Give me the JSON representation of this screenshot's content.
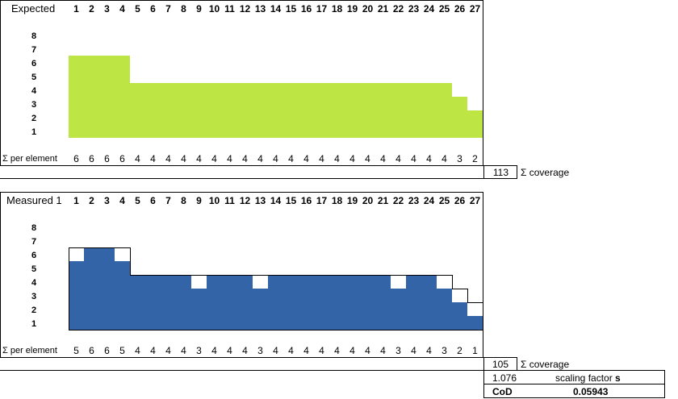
{
  "columns": [
    "1",
    "2",
    "3",
    "4",
    "5",
    "6",
    "7",
    "8",
    "9",
    "10",
    "11",
    "12",
    "13",
    "14",
    "15",
    "16",
    "17",
    "18",
    "19",
    "20",
    "21",
    "22",
    "23",
    "24",
    "25",
    "26",
    "27"
  ],
  "row_labels": [
    "8",
    "7",
    "6",
    "5",
    "4",
    "3",
    "2",
    "1"
  ],
  "sum_label": "Σ per element",
  "colors": {
    "expected_fill": "#bde543",
    "measured_fill": "#3464a8",
    "outline": "#000000"
  },
  "expected": {
    "title": "Expected",
    "values": [
      6,
      6,
      6,
      6,
      4,
      4,
      4,
      4,
      4,
      4,
      4,
      4,
      4,
      4,
      4,
      4,
      4,
      4,
      4,
      4,
      4,
      4,
      4,
      4,
      4,
      3,
      2
    ],
    "sums": [
      "6",
      "6",
      "6",
      "6",
      "4",
      "4",
      "4",
      "4",
      "4",
      "4",
      "4",
      "4",
      "4",
      "4",
      "4",
      "4",
      "4",
      "4",
      "4",
      "4",
      "4",
      "4",
      "4",
      "4",
      "4",
      "3",
      "2"
    ],
    "coverage_value": "113",
    "coverage_label": "Σ coverage"
  },
  "measured": {
    "title": "Measured 1",
    "expected_outline": [
      6,
      6,
      6,
      6,
      4,
      4,
      4,
      4,
      4,
      4,
      4,
      4,
      4,
      4,
      4,
      4,
      4,
      4,
      4,
      4,
      4,
      4,
      4,
      4,
      4,
      3,
      2
    ],
    "values": [
      5,
      6,
      6,
      5,
      4,
      4,
      4,
      4,
      3,
      4,
      4,
      4,
      3,
      4,
      4,
      4,
      4,
      4,
      4,
      4,
      4,
      3,
      4,
      4,
      3,
      2,
      1
    ],
    "sums": [
      "5",
      "6",
      "6",
      "5",
      "4",
      "4",
      "4",
      "4",
      "3",
      "4",
      "4",
      "4",
      "3",
      "4",
      "4",
      "4",
      "4",
      "4",
      "4",
      "4",
      "4",
      "3",
      "4",
      "4",
      "3",
      "2",
      "1"
    ],
    "coverage_value": "105",
    "coverage_label": "Σ coverage",
    "scaling_value": "1.076",
    "scaling_label": "scaling factor",
    "scaling_symbol": "s",
    "cod_label": "CoD",
    "cod_value": "0.05943"
  }
}
